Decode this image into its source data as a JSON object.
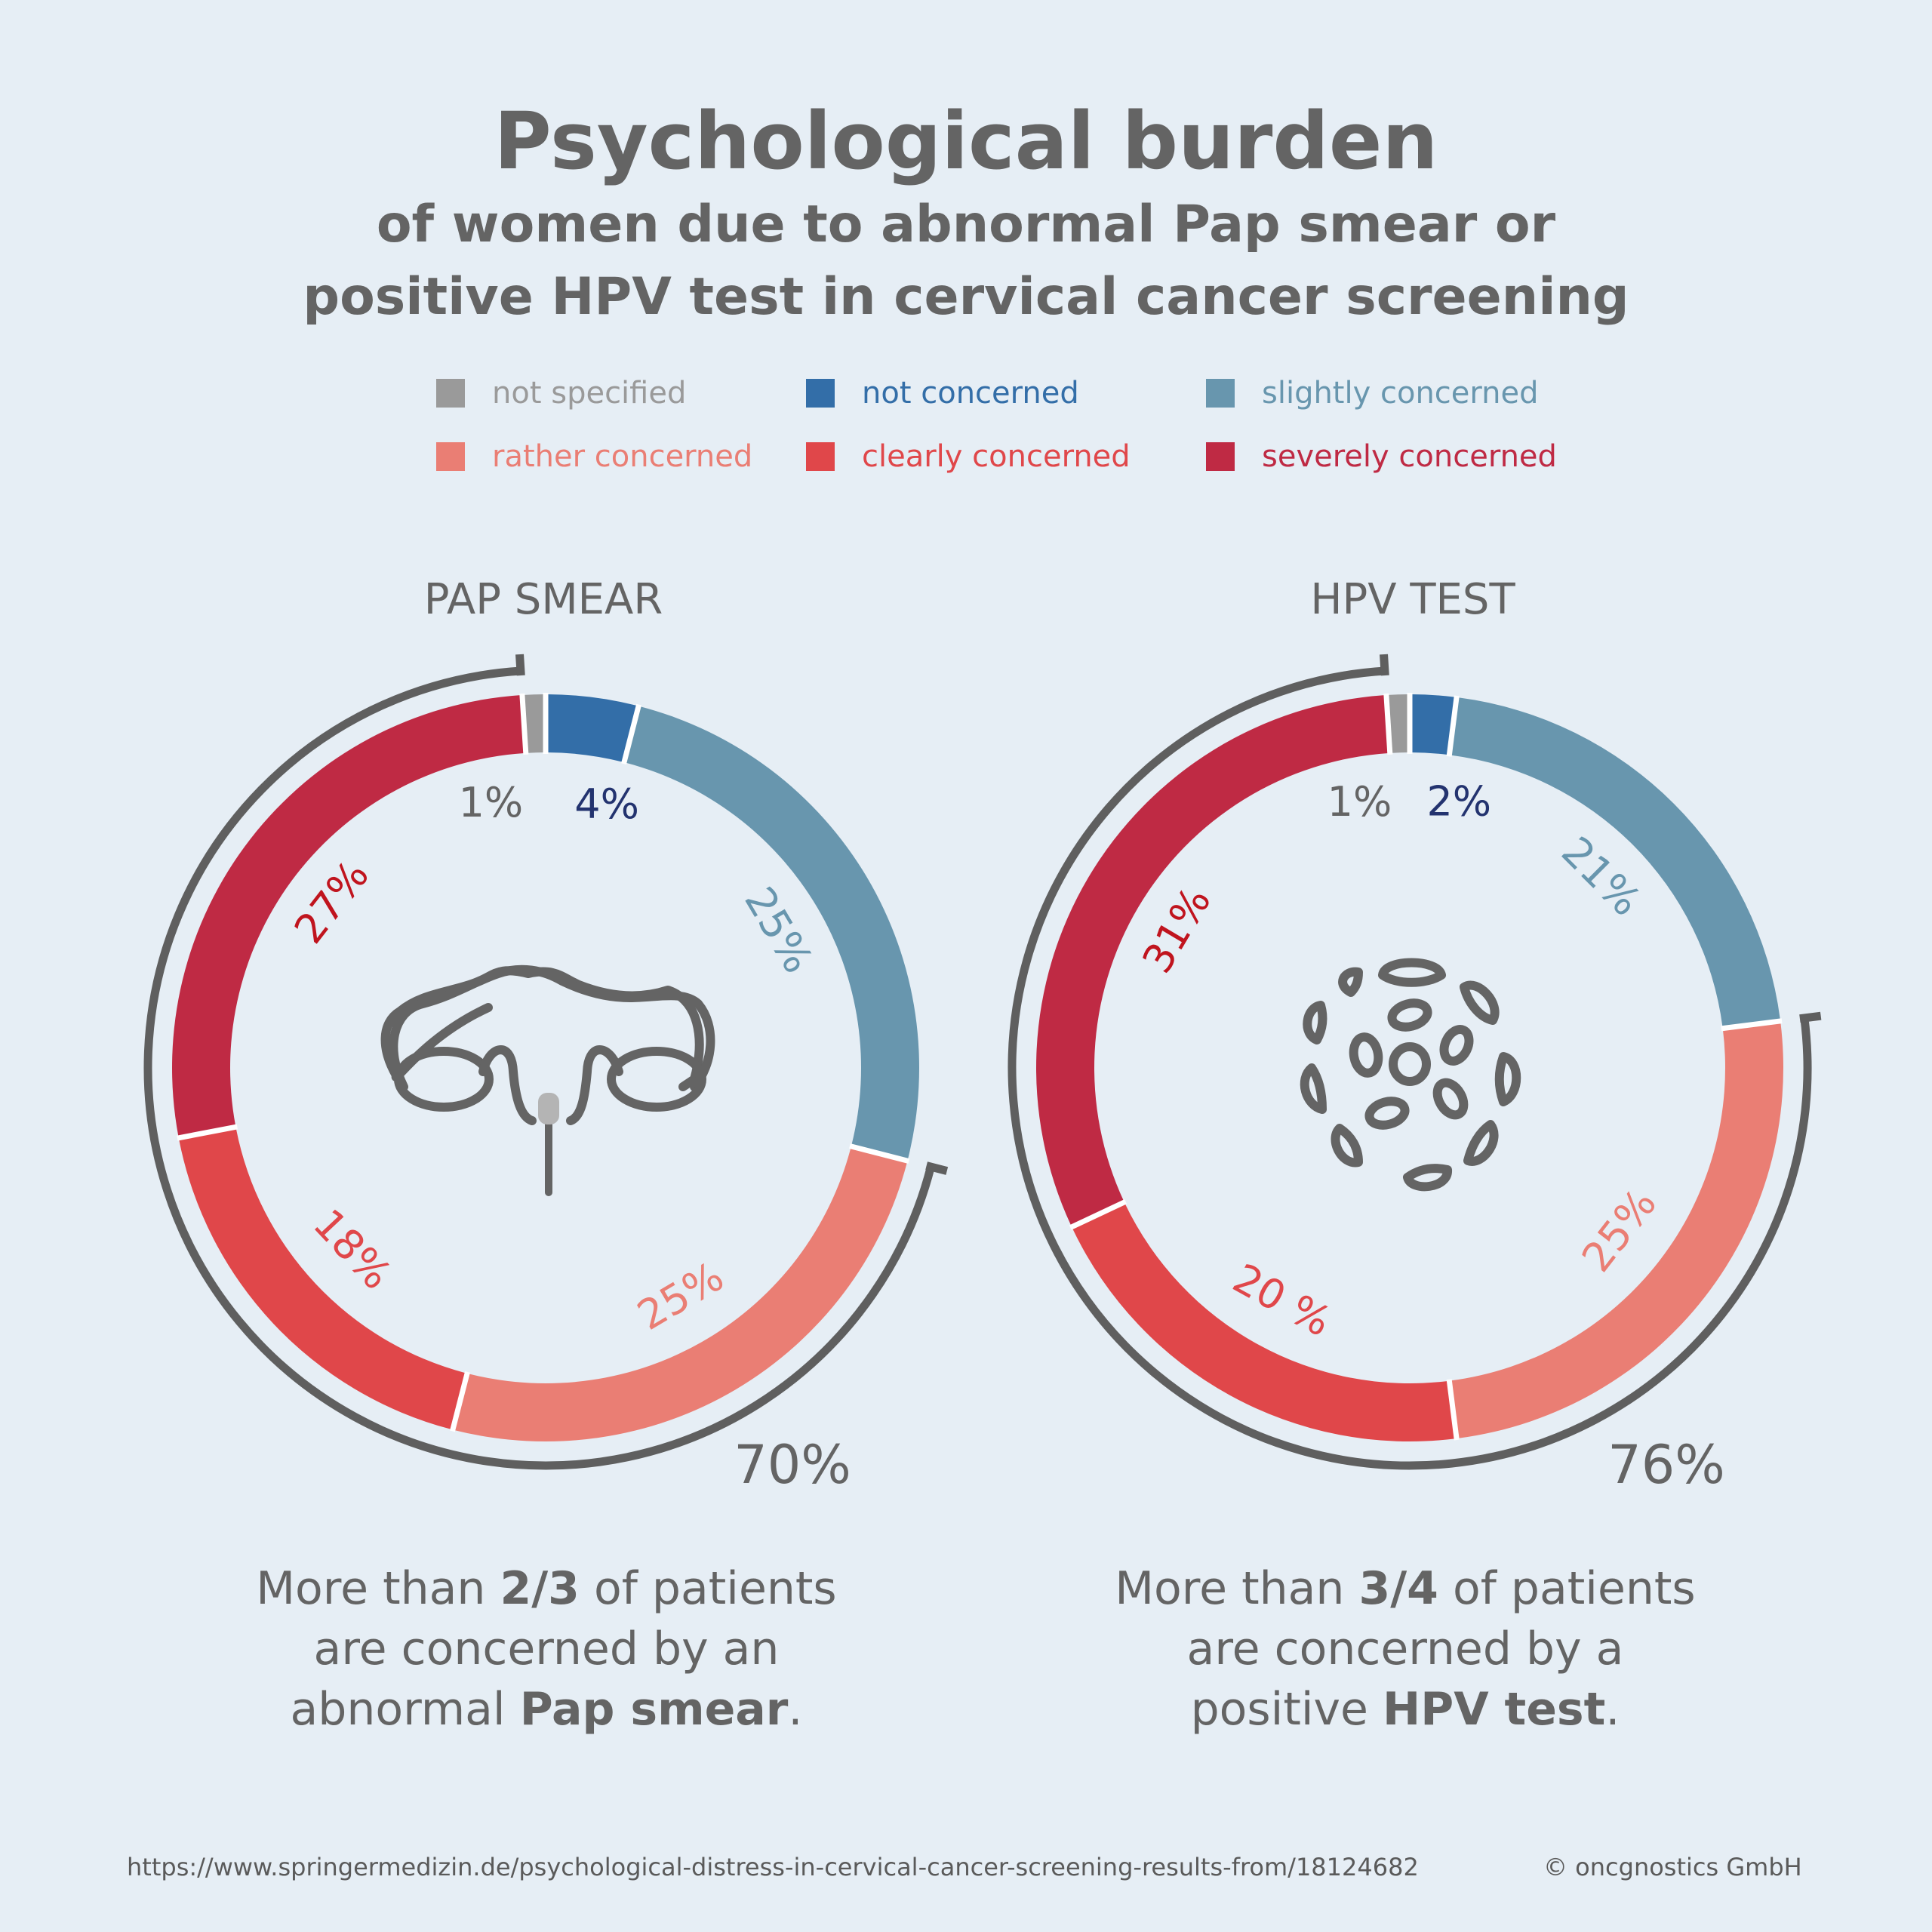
{
  "header": {
    "title": "Psychological burden",
    "subtitle_line1": "of women due to abnormal Pap smear or",
    "subtitle_line2": "positive HPV test in cervical cancer screening"
  },
  "legend": [
    {
      "label": "not specified",
      "color": "#9a9a9a"
    },
    {
      "label": "not concerned",
      "color": "#336ea8"
    },
    {
      "label": "slightly concerned",
      "color": "#6896ae"
    },
    {
      "label": "rather concerned",
      "color": "#ea7e74"
    },
    {
      "label": "clearly concerned",
      "color": "#e0474a"
    },
    {
      "label": "severely concerned",
      "color": "#bf2a44"
    }
  ],
  "colors": {
    "text": "#646464",
    "bracket": "#5f5f5f",
    "icon": "#646464",
    "icon_accent": "#b4b4b4",
    "label_not_concerned": "#23336f",
    "label_not_specified": "#646464",
    "label_slightly": "#6896ae",
    "label_rather": "#ea7e74",
    "label_clearly": "#e0474a",
    "label_severely": "#c0141e"
  },
  "chart_data": [
    {
      "type": "pie",
      "title": "PAP SMEAR",
      "categories": [
        "not specified",
        "not concerned",
        "slightly concerned",
        "rather concerned",
        "clearly concerned",
        "severely concerned"
      ],
      "values": [
        1,
        4,
        25,
        25,
        18,
        27
      ],
      "value_labels": [
        "1%",
        "4%",
        "25%",
        "25%",
        "18%",
        "27%"
      ],
      "concerned_total_label": "70%",
      "icon": "uterus-icon",
      "caption": {
        "pre": "More than ",
        "bold1": "2/3",
        "mid": " of patients",
        "line2": "are concerned by an",
        "line3_pre": "abnormal ",
        "bold2": "Pap smear",
        "end": "."
      }
    },
    {
      "type": "pie",
      "title": "HPV TEST",
      "categories": [
        "not specified",
        "not concerned",
        "slightly concerned",
        "rather concerned",
        "clearly concerned",
        "severely concerned"
      ],
      "values": [
        1,
        2,
        21,
        25,
        20,
        31
      ],
      "value_labels": [
        "1%",
        "2%",
        "21%",
        "25%",
        "20 %",
        "31%"
      ],
      "concerned_total_label": "76%",
      "icon": "virus-icon",
      "caption": {
        "pre": "More than ",
        "bold1": "3/4",
        "mid": " of patients",
        "line2": "are concerned by a",
        "line3_pre": "positive ",
        "bold2": "HPV test",
        "end": "."
      }
    }
  ],
  "footer": {
    "source_url": "https://www.springermedizin.de/psychological-distress-in-cervical-cancer-screening-results-from/18124682",
    "copyright": "© oncgnostics GmbH"
  }
}
